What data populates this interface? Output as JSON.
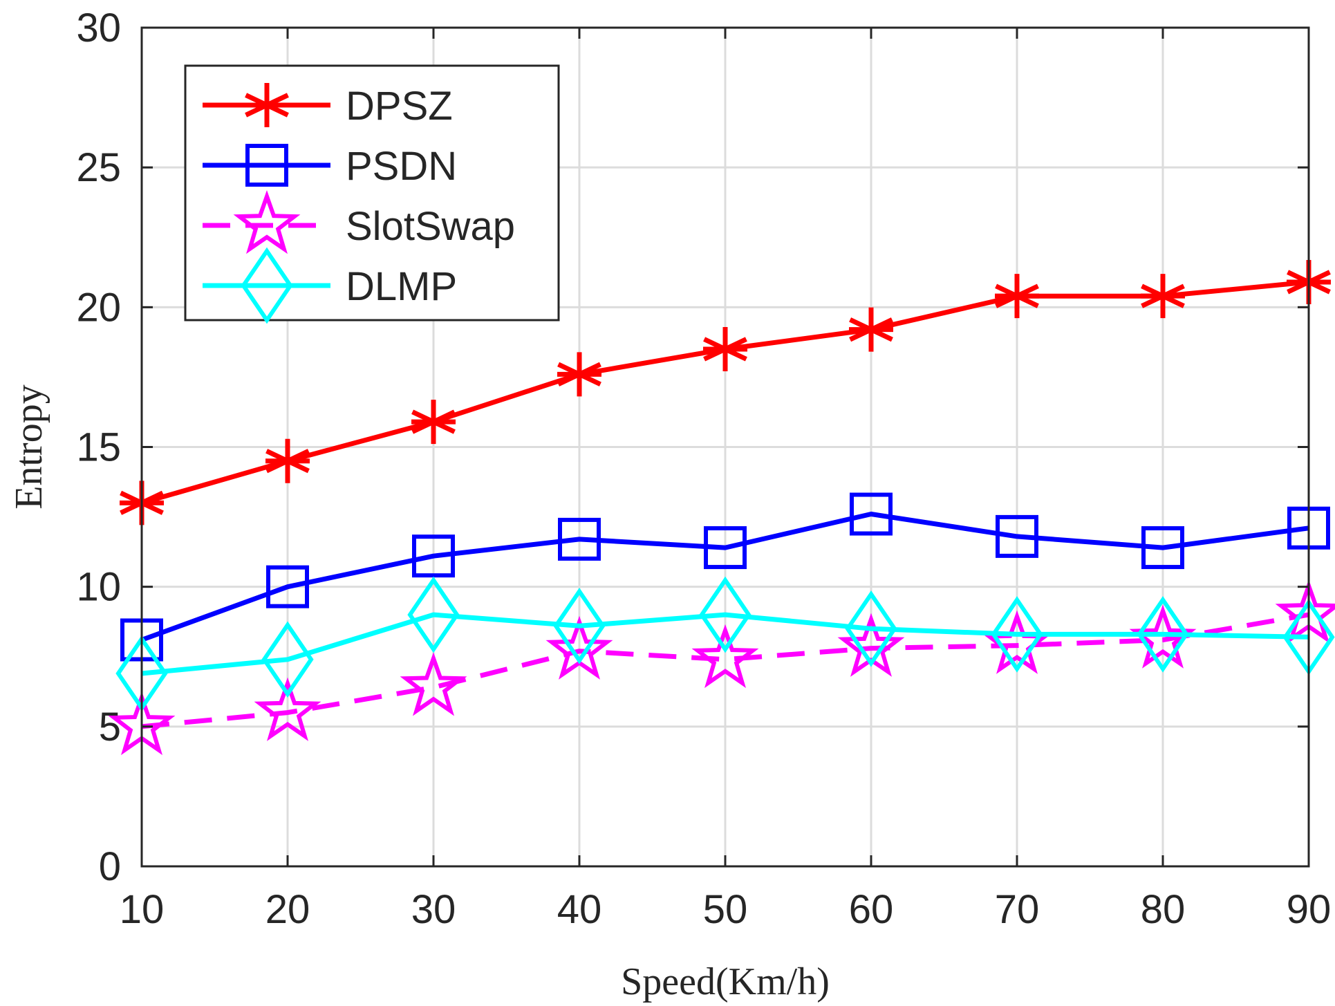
{
  "chart_data": {
    "type": "line",
    "title": "",
    "xlabel": "Speed(Km/h)",
    "ylabel": "Entropy",
    "x": [
      10,
      20,
      30,
      40,
      50,
      60,
      70,
      80,
      90
    ],
    "xlim": [
      10,
      90
    ],
    "ylim": [
      0,
      30
    ],
    "xticks": [
      "10",
      "20",
      "30",
      "40",
      "50",
      "60",
      "70",
      "80",
      "90"
    ],
    "yticks": [
      "0",
      "5",
      "10",
      "15",
      "20",
      "25",
      "30"
    ],
    "grid": true,
    "legend_position": "top-left",
    "series": [
      {
        "name": "DPSZ",
        "color": "#ff0000",
        "marker": "asterisk",
        "dash": "solid",
        "values": [
          13.0,
          14.5,
          15.9,
          17.6,
          18.5,
          19.2,
          20.4,
          20.4,
          20.9
        ]
      },
      {
        "name": "PSDN",
        "color": "#0000ff",
        "marker": "square",
        "dash": "solid",
        "values": [
          8.1,
          10.0,
          11.1,
          11.7,
          11.4,
          12.6,
          11.8,
          11.4,
          12.1
        ]
      },
      {
        "name": "SlotSwap",
        "color": "#ff00ff",
        "marker": "star",
        "dash": "dashed",
        "values": [
          5.0,
          5.5,
          6.4,
          7.7,
          7.4,
          7.8,
          7.9,
          8.1,
          9.0
        ]
      },
      {
        "name": "DLMP",
        "color": "#00ffff",
        "marker": "diamond",
        "dash": "solid",
        "values": [
          6.9,
          7.4,
          9.0,
          8.6,
          9.0,
          8.5,
          8.3,
          8.3,
          8.2
        ]
      }
    ]
  }
}
